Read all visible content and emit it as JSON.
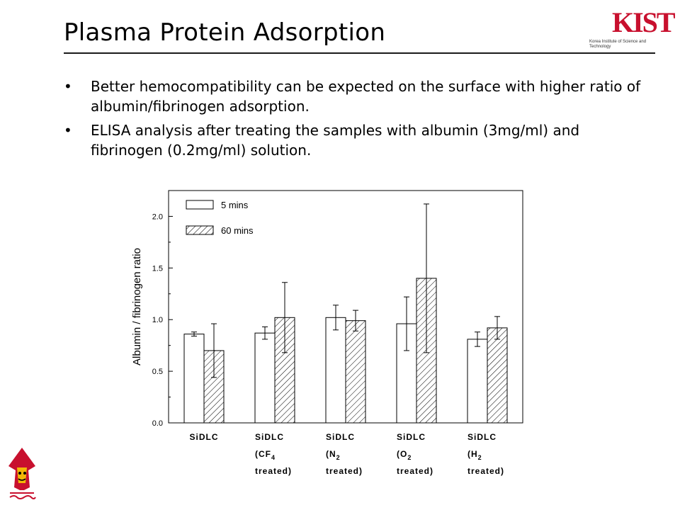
{
  "slide": {
    "title": "Plasma Protein Adsorption",
    "logo_text": "KIST",
    "logo_subtext": "Korea Institute of Science and Technology",
    "bullets": [
      "Better hemocompatibility can be expected on the surface with higher ratio of albumin/fibrinogen adsorption.",
      "ELISA analysis after treating the samples with albumin (3mg/ml) and fibrinogen (0.2mg/ml) solution."
    ],
    "bullet_symbol": "•",
    "colors": {
      "logo": "#c8102e",
      "text": "#000000"
    }
  },
  "chart_data": {
    "type": "bar",
    "ylabel": "Albumin / fibrinogen ratio",
    "xlabel": "",
    "ylim": [
      0,
      2.25
    ],
    "yticks": [
      "0.0",
      "0.5",
      "1.0",
      "1.5",
      "2.0"
    ],
    "grid": false,
    "legend_position": "top-left",
    "categories": [
      [
        "SiDLC"
      ],
      [
        "SiDLC",
        "(CF4",
        "treated)"
      ],
      [
        "SiDLC",
        "(N2",
        "treated)"
      ],
      [
        "SiDLC",
        "(O2",
        "treated)"
      ],
      [
        "SiDLC",
        "(H2",
        "treated)"
      ]
    ],
    "series": [
      {
        "name": "5 mins",
        "pattern": "open",
        "values": [
          0.86,
          0.87,
          1.02,
          0.96,
          0.81
        ],
        "errors": [
          0.02,
          0.06,
          0.12,
          0.26,
          0.07
        ]
      },
      {
        "name": "60 mins",
        "pattern": "hatched",
        "values": [
          0.7,
          1.02,
          0.99,
          1.4,
          0.92
        ],
        "errors": [
          0.26,
          0.34,
          0.1,
          0.72,
          0.11
        ]
      }
    ]
  }
}
